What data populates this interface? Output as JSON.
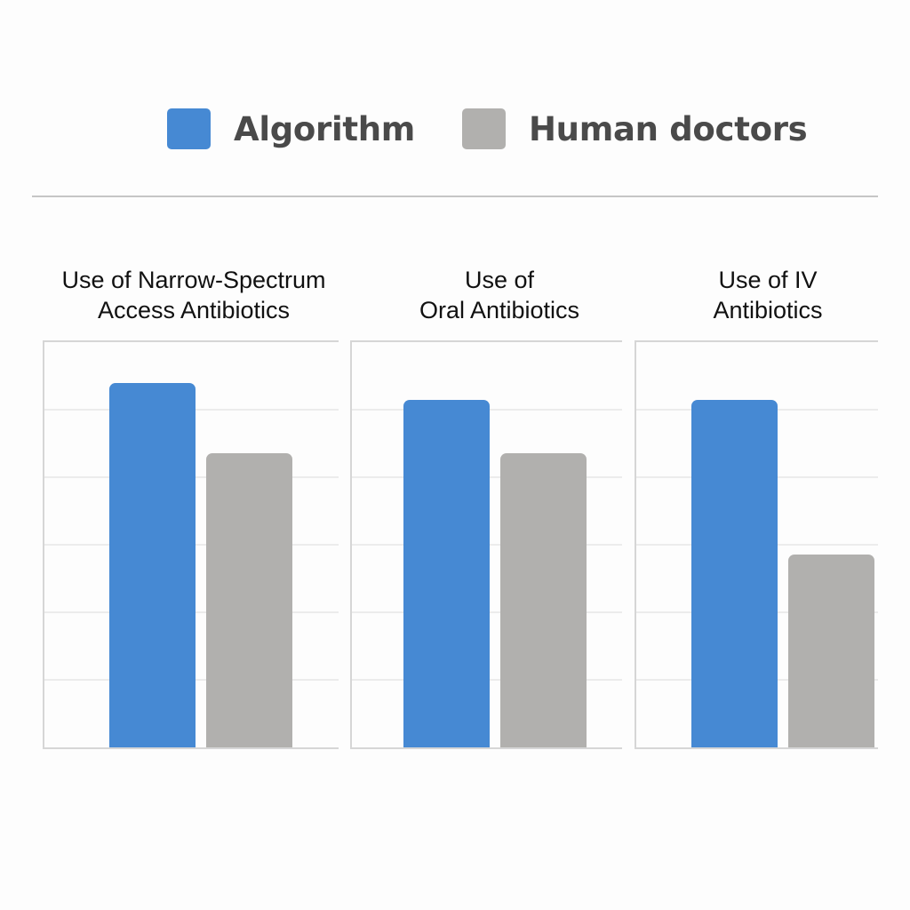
{
  "legend": {
    "items": [
      {
        "label": "Algorithm",
        "color": "#4689d3"
      },
      {
        "label": "Human doctors",
        "color": "#b1b0ae"
      }
    ]
  },
  "panels": [
    {
      "title_line1": "Use of Narrow-Spectrum",
      "title_line2": "Access Antibiotics"
    },
    {
      "title_line1": "Use of",
      "title_line2": "Oral Antibiotics"
    },
    {
      "title_line1": "Use of IV",
      "title_line2": "Antibiotics"
    }
  ],
  "chart_data": {
    "type": "bar",
    "title": "",
    "xlabel": "",
    "ylabel": "",
    "ylim": [
      0,
      6
    ],
    "grid": true,
    "y_tick_labels_shown": false,
    "legend_position": "top",
    "categories": [
      "Use of Narrow-Spectrum Access Antibiotics",
      "Use of Oral Antibiotics",
      "Use of IV Antibiotics"
    ],
    "series": [
      {
        "name": "Algorithm",
        "color": "#4689d3",
        "values": [
          5.4,
          5.15,
          5.15
        ]
      },
      {
        "name": "Human doctors",
        "color": "#b1b0ae",
        "values": [
          4.35,
          4.35,
          2.85
        ]
      }
    ],
    "note": "Values are relative heights on an unlabeled axis (6 gridline intervals)."
  }
}
